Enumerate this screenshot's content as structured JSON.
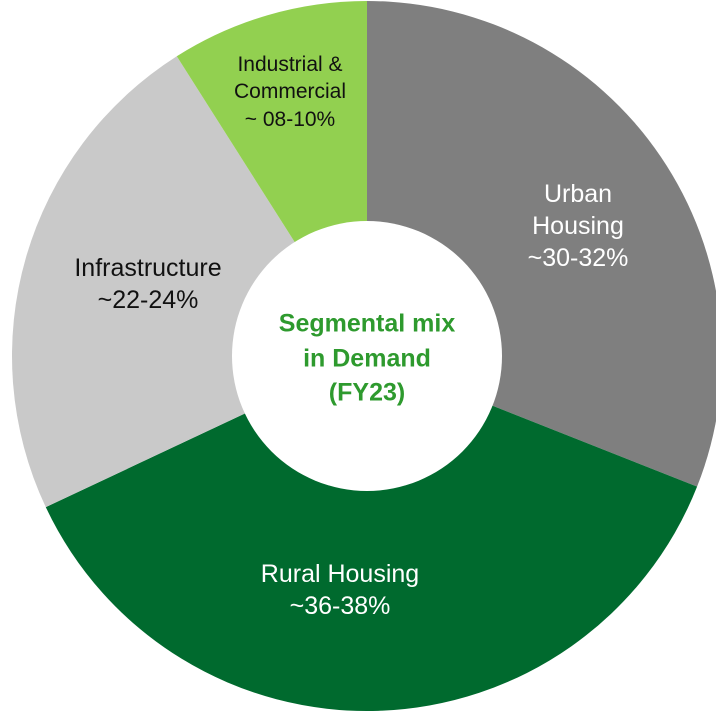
{
  "chart_data": {
    "type": "donut",
    "title": "Segmental mix in Demand (FY23)",
    "categories": [
      "Urban Housing",
      "Rural Housing",
      "Infrastructure",
      "Industrial & Commercial"
    ],
    "values": [
      31,
      37,
      23,
      9
    ],
    "value_labels": [
      "~30-32%",
      "~36-38%",
      "~22-24%",
      "~ 08-10%"
    ],
    "colors": [
      "#7f7f7f",
      "#006a2e",
      "#c9c9c9",
      "#92d050"
    ]
  }
}
